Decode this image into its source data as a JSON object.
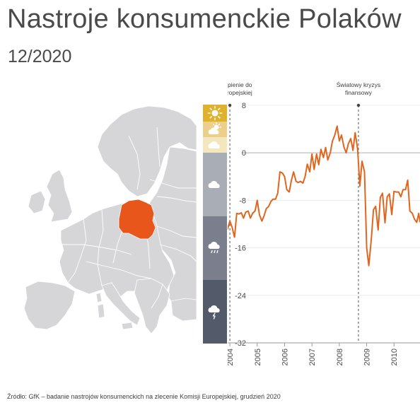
{
  "header": {
    "title": "Nastroje konsumenckie Polaków",
    "subtitle": "12/2020"
  },
  "mood_scale": {
    "bands": [
      {
        "icon": "sun-icon",
        "color": "#e0b22c"
      },
      {
        "icon": "sun-cloud-icon",
        "color": "#ecd08a"
      },
      {
        "icon": "cloud-icon",
        "color": "#f4e6bd"
      },
      {
        "icon": "cloud-icon",
        "color": "#a9adb5"
      },
      {
        "icon": "cloud-rain-icon",
        "color": "#7b7f8d"
      },
      {
        "icon": "cloud-storm-icon",
        "color": "#535a6a"
      }
    ]
  },
  "map": {
    "highlight_color": "#e8561c",
    "base_color": "#d6d6d8",
    "border_color": "#ffffff"
  },
  "chart_data": {
    "type": "line",
    "title": "",
    "xlabel": "",
    "ylabel": "",
    "ylim": [
      -32,
      8
    ],
    "xlim": [
      2003.92,
      2010.95
    ],
    "yticks": [
      8,
      0,
      -8,
      -16,
      -24,
      -32
    ],
    "yticklabels": [
      "8",
      "0",
      "-8",
      "-16",
      "-24",
      "-32"
    ],
    "xticks": [
      2004,
      2005,
      2006,
      2007,
      2008,
      2009,
      2010
    ],
    "xticklabels": [
      "2004",
      "2005",
      "2006",
      "2007",
      "2008",
      "2009",
      "2010"
    ],
    "grid": true,
    "line_color": "#e0661f",
    "annotations": [
      {
        "x": 2004.0,
        "lines": [
          "Przystąpienie do",
          "Unii Europejskiej"
        ]
      },
      {
        "x": 2008.7,
        "lines": [
          "Światowy kryzys",
          "finansowy"
        ]
      }
    ],
    "series": [
      {
        "values": [
          [
            2003.92,
            -12.8
          ],
          [
            2004.0,
            -11.5
          ],
          [
            2004.08,
            -12.5
          ],
          [
            2004.17,
            -14.2
          ],
          [
            2004.25,
            -10.2
          ],
          [
            2004.33,
            -10.3
          ],
          [
            2004.42,
            -10.1
          ],
          [
            2004.5,
            -11.0
          ],
          [
            2004.58,
            -10.0
          ],
          [
            2004.67,
            -9.8
          ],
          [
            2004.75,
            -11.0
          ],
          [
            2004.83,
            -10.2
          ],
          [
            2004.92,
            -9.8
          ],
          [
            2005.0,
            -8.0
          ],
          [
            2005.08,
            -10.4
          ],
          [
            2005.17,
            -11.5
          ],
          [
            2005.25,
            -10.6
          ],
          [
            2005.33,
            -9.4
          ],
          [
            2005.42,
            -9.0
          ],
          [
            2005.5,
            -8.2
          ],
          [
            2005.58,
            -7.8
          ],
          [
            2005.67,
            -7.8
          ],
          [
            2005.75,
            -6.8
          ],
          [
            2005.83,
            -3.2
          ],
          [
            2005.92,
            -3.4
          ],
          [
            2006.0,
            -4.0
          ],
          [
            2006.08,
            -6.2
          ],
          [
            2006.17,
            -6.6
          ],
          [
            2006.25,
            -4.6
          ],
          [
            2006.33,
            -3.2
          ],
          [
            2006.42,
            -4.8
          ],
          [
            2006.5,
            -5.0
          ],
          [
            2006.58,
            -4.8
          ],
          [
            2006.67,
            -5.1
          ],
          [
            2006.75,
            -4.0
          ],
          [
            2006.83,
            -1.9
          ],
          [
            2006.92,
            -3.2
          ],
          [
            2007.0,
            -0.2
          ],
          [
            2007.08,
            -2.8
          ],
          [
            2007.17,
            -0.2
          ],
          [
            2007.25,
            -2.0
          ],
          [
            2007.33,
            0.6
          ],
          [
            2007.42,
            -0.8
          ],
          [
            2007.5,
            0.9
          ],
          [
            2007.58,
            -1.2
          ],
          [
            2007.67,
            0.0
          ],
          [
            2007.75,
            2.0
          ],
          [
            2007.83,
            2.9
          ],
          [
            2007.92,
            4.5
          ],
          [
            2008.0,
            2.0
          ],
          [
            2008.08,
            3.0
          ],
          [
            2008.17,
            1.0
          ],
          [
            2008.25,
            0.0
          ],
          [
            2008.33,
            1.5
          ],
          [
            2008.42,
            2.4
          ],
          [
            2008.5,
            0.4
          ],
          [
            2008.58,
            3.4
          ],
          [
            2008.67,
            0.6
          ],
          [
            2008.75,
            -5.6
          ],
          [
            2008.83,
            -1.4
          ],
          [
            2008.92,
            -3.2
          ],
          [
            2009.0,
            -16.0
          ],
          [
            2009.08,
            -19.0
          ],
          [
            2009.17,
            -14.6
          ],
          [
            2009.25,
            -9.6
          ],
          [
            2009.33,
            -9.0
          ],
          [
            2009.42,
            -13.0
          ],
          [
            2009.5,
            -7.5
          ],
          [
            2009.58,
            -6.8
          ],
          [
            2009.67,
            -11.8
          ],
          [
            2009.75,
            -7.4
          ],
          [
            2009.83,
            -6.9
          ],
          [
            2009.92,
            -10.4
          ],
          [
            2010.0,
            -6.5
          ],
          [
            2010.08,
            -6.6
          ],
          [
            2010.17,
            -6.6
          ],
          [
            2010.25,
            -7.4
          ],
          [
            2010.33,
            -6.2
          ],
          [
            2010.42,
            -6.2
          ],
          [
            2010.5,
            -4.6
          ],
          [
            2010.58,
            -9.8
          ],
          [
            2010.67,
            -10.2
          ],
          [
            2010.75,
            -11.2
          ],
          [
            2010.83,
            -11.7
          ],
          [
            2010.9,
            -10.2
          ],
          [
            2010.95,
            -11.6
          ]
        ]
      }
    ]
  },
  "footer": {
    "source": "Źródło: GfK – badanie nastrojów konsumenckich na zlecenie Komisji Europejskiej, grudzień 2020"
  }
}
